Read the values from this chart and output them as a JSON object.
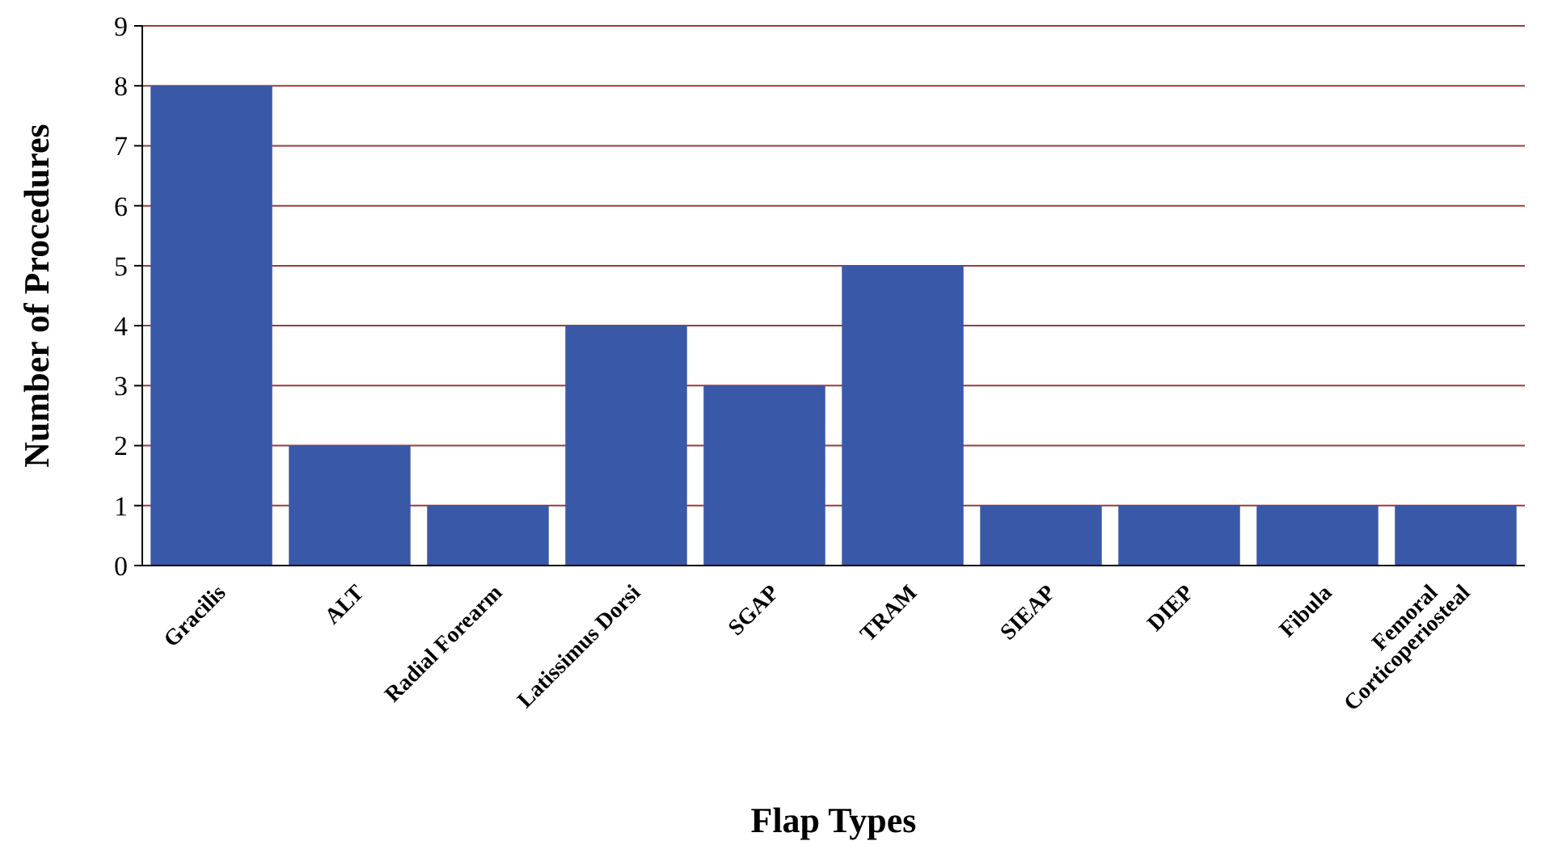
{
  "chart_data": {
    "type": "bar",
    "xlabel": "Flap Types",
    "ylabel": "Number of Procedures",
    "categories": [
      "Gracilis",
      "ALT",
      "Radial Forearm",
      "Latissimus Dorsi",
      "SGAP",
      "TRAM",
      "SIEAP",
      "DIEP",
      "Fibula",
      "Femoral\nCorticoperiosteal"
    ],
    "values": [
      8,
      2,
      1,
      4,
      3,
      5,
      1,
      1,
      1,
      1
    ],
    "color": "#3a58a8",
    "ylim": [
      0,
      9
    ],
    "yticks": [
      0,
      1,
      2,
      3,
      4,
      5,
      6,
      7,
      8,
      9
    ],
    "grid": "y"
  }
}
